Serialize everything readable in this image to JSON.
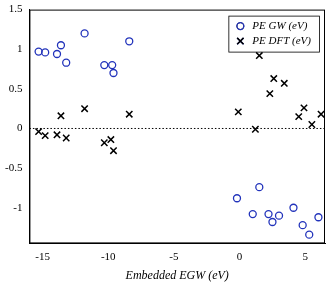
{
  "chart_data": {
    "type": "scatter",
    "x_label": "Embedded EGW (eV)",
    "xlim": [
      -16,
      6.5
    ],
    "xticks": [
      -15,
      -10,
      -5,
      0,
      5
    ],
    "ylim": [
      -1.45,
      1.5
    ],
    "yticks": [
      -1,
      -0.5,
      0,
      0.5,
      1,
      1.5
    ],
    "grid": false,
    "legend": "upper right",
    "series": [
      {
        "name": "PE GW (eV)",
        "color": "#2233bb",
        "marker": "circle",
        "x": [
          -15.3,
          -14.8,
          -13.9,
          -13.6,
          -13.2,
          -11.8,
          -10.3,
          -9.7,
          -9.6,
          -8.4,
          -0.2,
          1.0,
          1.5,
          2.2,
          2.5,
          3.0,
          4.1,
          4.8,
          5.3,
          6.0
        ],
        "values": [
          0.97,
          0.96,
          0.94,
          1.05,
          0.83,
          1.2,
          0.8,
          0.8,
          0.7,
          1.1,
          -0.88,
          -1.08,
          -0.74,
          -1.08,
          -1.18,
          -1.1,
          -1.0,
          -1.22,
          -1.34,
          -1.12
        ]
      },
      {
        "name": "PE DFT (eV)",
        "color": "#000000",
        "marker": "cross",
        "x": [
          -15.3,
          -14.8,
          -13.9,
          -13.6,
          -13.2,
          -11.8,
          -10.3,
          -9.8,
          -9.6,
          -8.4,
          -0.1,
          1.2,
          1.5,
          2.3,
          2.6,
          3.4,
          4.5,
          4.9,
          5.5,
          6.2
        ],
        "values": [
          -0.04,
          -0.09,
          -0.08,
          0.16,
          -0.12,
          0.25,
          -0.18,
          -0.14,
          -0.28,
          0.18,
          0.21,
          -0.01,
          0.92,
          0.44,
          0.63,
          0.57,
          0.15,
          0.26,
          0.05,
          0.18
        ]
      }
    ]
  }
}
